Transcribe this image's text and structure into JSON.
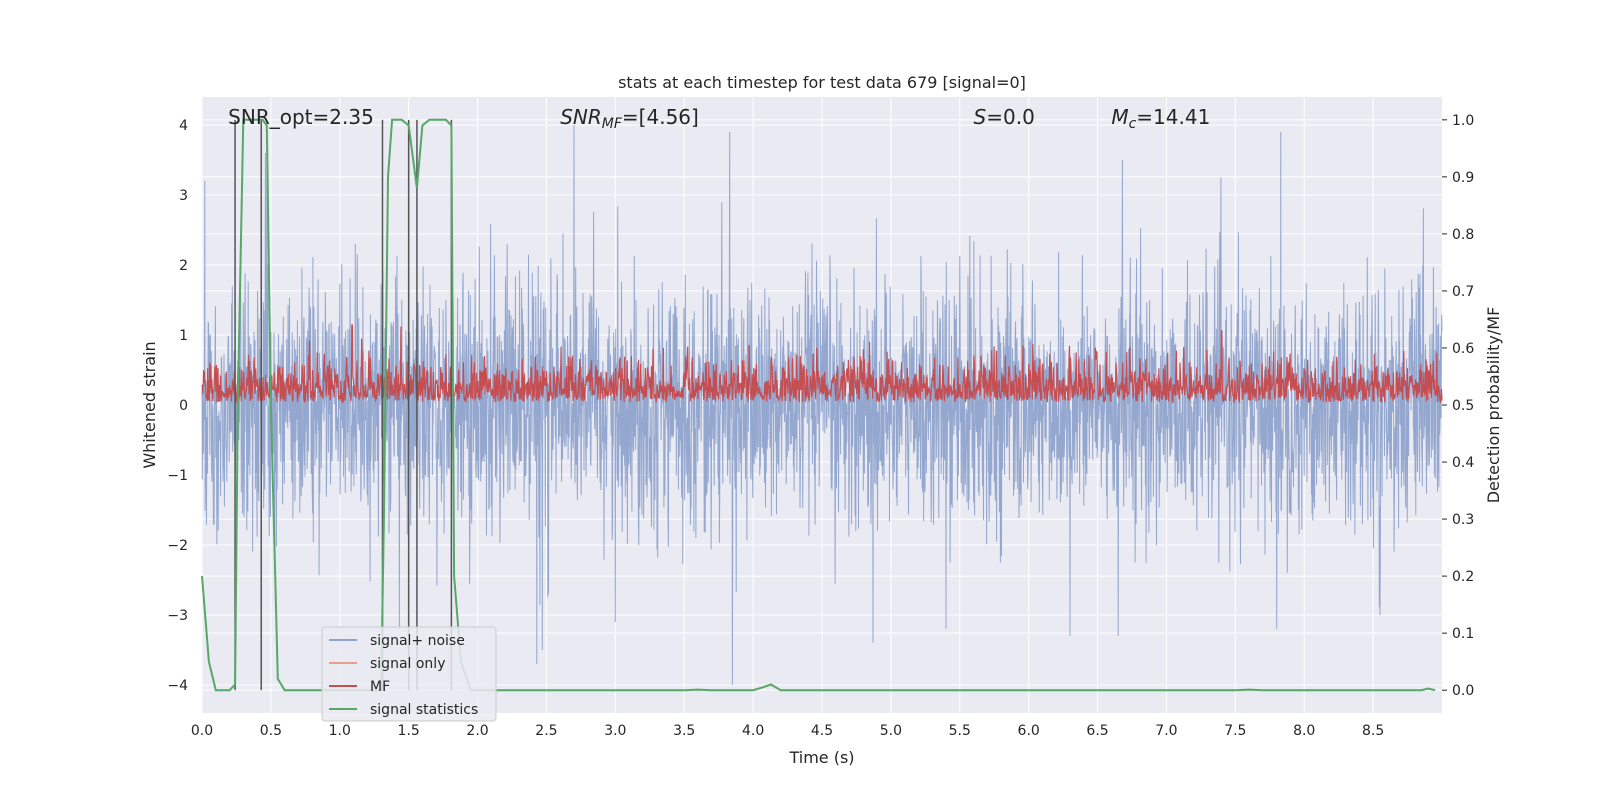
{
  "chart_data": {
    "type": "line",
    "title": "stats at each timestep for test data 679 [signal=0]",
    "xlabel": "Time (s)",
    "ylabel_left": "Whitened strain",
    "ylabel_right": "Detection probability/MF",
    "xlim": [
      0,
      9.0
    ],
    "ylim_left": [
      -4.4,
      4.4
    ],
    "ylim_right": [
      -0.04,
      1.04
    ],
    "x_ticks": [
      "0.0",
      "0.5",
      "1.0",
      "1.5",
      "2.0",
      "2.5",
      "3.0",
      "3.5",
      "4.0",
      "4.5",
      "5.0",
      "5.5",
      "6.0",
      "6.5",
      "7.0",
      "7.5",
      "8.0",
      "8.5"
    ],
    "y_ticks_left": [
      "−4",
      "−3",
      "−2",
      "−1",
      "0",
      "1",
      "2",
      "3",
      "4"
    ],
    "y_ticks_right": [
      "0.0",
      "0.1",
      "0.2",
      "0.3",
      "0.4",
      "0.5",
      "0.6",
      "0.7",
      "0.8",
      "0.9",
      "1.0"
    ],
    "grid": true,
    "annotations": [
      {
        "label": "SNR_opt=2.35",
        "x": 0.19
      },
      {
        "label_italic": "SNR",
        "label_sub": "MF",
        "label_rest": "=[4.56]",
        "x": 2.6
      },
      {
        "label_italic": "S",
        "label_rest": "=0.0",
        "x": 5.6
      },
      {
        "label_italic": "M",
        "label_sub": "c",
        "label_rest": "=14.41",
        "x": 6.6
      }
    ],
    "vlines_x": [
      0.24,
      0.43,
      1.31,
      1.5,
      1.56,
      1.81
    ],
    "series": [
      {
        "name": "signal+ noise",
        "color": "#8fa3cc",
        "axis": "left",
        "sample_rate_hz": 1024,
        "envelope_note": "noise band roughly −2.4..2.4 with spikes",
        "spikes": [
          {
            "x": 0.02,
            "y": 3.2
          },
          {
            "x": 0.46,
            "y": 3.6
          },
          {
            "x": 0.47,
            "y": 3.4
          },
          {
            "x": 1.5,
            "y": 3.6
          },
          {
            "x": 2.7,
            "y": 4.0
          },
          {
            "x": 3.83,
            "y": 3.9
          },
          {
            "x": 6.68,
            "y": 3.5
          },
          {
            "x": 7.83,
            "y": 3.9
          },
          {
            "x": 3.85,
            "y": -4.0
          },
          {
            "x": 2.43,
            "y": -3.7
          },
          {
            "x": 2.47,
            "y": -3.5
          },
          {
            "x": 4.87,
            "y": -3.4
          },
          {
            "x": 6.3,
            "y": -3.3
          },
          {
            "x": 6.65,
            "y": -3.3
          },
          {
            "x": 7.8,
            "y": -3.2
          },
          {
            "x": 8.55,
            "y": -3.0
          },
          {
            "x": 3.0,
            "y": -3.1
          },
          {
            "x": 5.4,
            "y": -3.2
          }
        ]
      },
      {
        "name": "signal only",
        "color": "#e8a08a",
        "axis": "left",
        "values": []
      },
      {
        "name": "MF",
        "color": "#c44e52",
        "axis": "right",
        "envelope_note": "values mostly between 0.50 and 0.62",
        "peaks": [
          {
            "x": 1.09,
            "y": 0.64
          },
          {
            "x": 7.4,
            "y": 0.63
          }
        ]
      },
      {
        "name": "signal statistics",
        "color": "#55a868",
        "axis": "right",
        "x": [
          0.0,
          0.05,
          0.1,
          0.2,
          0.24,
          0.26,
          0.3,
          0.34,
          0.4,
          0.44,
          0.47,
          0.5,
          0.55,
          0.6,
          1.0,
          1.3,
          1.32,
          1.35,
          1.38,
          1.45,
          1.5,
          1.56,
          1.6,
          1.65,
          1.7,
          1.77,
          1.81,
          1.83,
          1.88,
          1.95,
          2.0,
          3.5,
          3.6,
          3.7,
          4.0,
          4.07,
          4.13,
          4.2,
          7.5,
          7.6,
          7.7,
          8.5,
          8.85,
          8.9,
          8.95
        ],
        "values": [
          0.2,
          0.05,
          0.0,
          0.0,
          0.01,
          0.5,
          1.0,
          1.0,
          1.0,
          1.0,
          0.99,
          0.5,
          0.02,
          0.0,
          0.0,
          0.0,
          0.3,
          0.9,
          1.0,
          1.0,
          0.99,
          0.88,
          0.99,
          1.0,
          1.0,
          1.0,
          0.99,
          0.2,
          0.05,
          0.0,
          0.0,
          0.0,
          0.001,
          0.0,
          0.0,
          0.005,
          0.01,
          0.0,
          0.0,
          0.001,
          0.0,
          0.0,
          0.0,
          0.003,
          0.0
        ]
      }
    ],
    "legend_position": "lower-left",
    "colors": {
      "background": "#eaeaf2",
      "grid": "#ffffff",
      "vline": "#555555"
    }
  }
}
